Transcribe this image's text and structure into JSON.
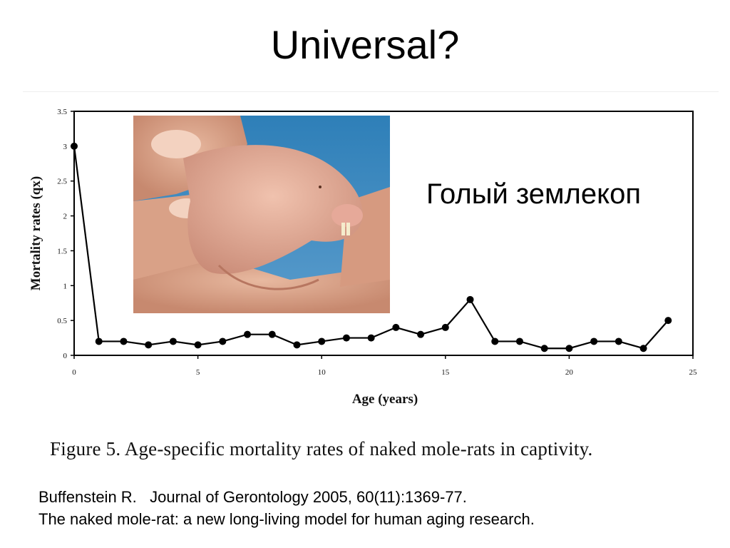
{
  "slide": {
    "title": "Universal?",
    "annotation": "Голый землекоп",
    "caption": "Figure 5.  Age-specific mortality rates of naked mole-rats in captivity.",
    "reference_line1": "Buffenstein R.   Journal of Gerontology 2005, 60(11):1369-77.",
    "reference_line2": "The naked mole-rat: a new long-living model for human aging research."
  },
  "chart_data": {
    "type": "line",
    "title": "",
    "xlabel": "Age (years)",
    "ylabel": "Mortality rates (qx)",
    "xlim": [
      0,
      25
    ],
    "ylim": [
      0,
      3.5
    ],
    "xticks": [
      0,
      5,
      10,
      15,
      20,
      25
    ],
    "yticks": [
      0,
      0.5,
      1,
      1.5,
      2,
      2.5,
      3,
      3.5
    ],
    "ytick_labels": [
      "0",
      "0.5",
      "1",
      "1.5",
      "2",
      "2.5",
      "3",
      "3.5"
    ],
    "grid": false,
    "legend": "none",
    "series": [
      {
        "x": [
          0,
          1,
          2,
          3,
          4,
          5,
          6,
          7,
          8,
          9,
          10,
          11,
          12,
          13,
          14,
          15,
          16,
          17,
          18,
          19,
          20,
          21,
          22,
          23,
          24
        ],
        "y": [
          3.0,
          0.2,
          0.2,
          0.15,
          0.2,
          0.15,
          0.2,
          0.3,
          0.3,
          0.15,
          0.2,
          0.25,
          0.25,
          0.4,
          0.3,
          0.4,
          0.8,
          0.2,
          0.2,
          0.1,
          0.1,
          0.2,
          0.2,
          0.1,
          0.5
        ],
        "color": "#000000"
      }
    ]
  }
}
